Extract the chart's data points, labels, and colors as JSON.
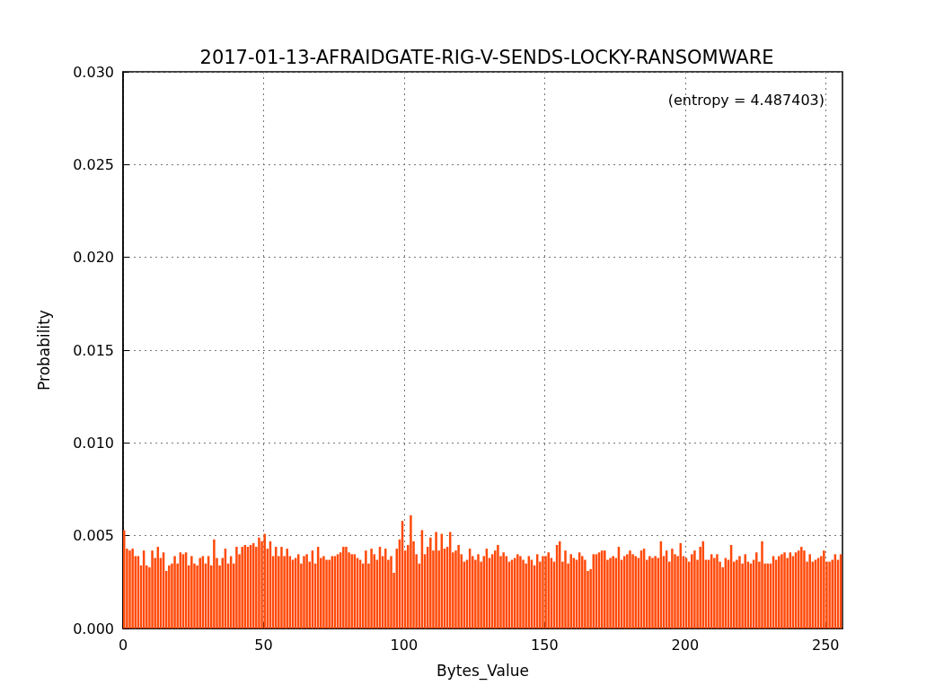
{
  "chart_data": {
    "type": "histogram",
    "title": "2017-01-13-AFRAIDGATE-RIG-V-SENDS-LOCKY-RANSOMWARE",
    "xlabel": "Bytes_Value",
    "ylabel": "Probability",
    "color": "#ff4a0a",
    "annotations": [
      "(entropy = 4.487403)"
    ],
    "bins": [
      0,
      1,
      2,
      3,
      4,
      5,
      6,
      7,
      8,
      9,
      10,
      11,
      12,
      13,
      14,
      15,
      16,
      17,
      18,
      19,
      20,
      21,
      22,
      23,
      24,
      25,
      26,
      27,
      28,
      29,
      30,
      31,
      32,
      33,
      34,
      35,
      36,
      37,
      38,
      39,
      40,
      41,
      42,
      43,
      44,
      45,
      46,
      47,
      48,
      49,
      50,
      51,
      52,
      53,
      54,
      55,
      56,
      57,
      58,
      59,
      60,
      61,
      62,
      63,
      64,
      65,
      66,
      67,
      68,
      69,
      70,
      71,
      72,
      73,
      74,
      75,
      76,
      77,
      78,
      79,
      80,
      81,
      82,
      83,
      84,
      85,
      86,
      87,
      88,
      89,
      90,
      91,
      92,
      93,
      94,
      95,
      96,
      97,
      98,
      99,
      100,
      101,
      102,
      103,
      104,
      105,
      106,
      107,
      108,
      109,
      110,
      111,
      112,
      113,
      114,
      115,
      116,
      117,
      118,
      119,
      120,
      121,
      122,
      123,
      124,
      125,
      126,
      127,
      128,
      129,
      130,
      131,
      132,
      133,
      134,
      135,
      136,
      137,
      138,
      139,
      140,
      141,
      142,
      143,
      144,
      145,
      146,
      147,
      148,
      149,
      150,
      151,
      152,
      153,
      154,
      155,
      156,
      157,
      158,
      159,
      160,
      161,
      162,
      163,
      164,
      165,
      166,
      167,
      168,
      169,
      170,
      171,
      172,
      173,
      174,
      175,
      176,
      177,
      178,
      179,
      180,
      181,
      182,
      183,
      184,
      185,
      186,
      187,
      188,
      189,
      190,
      191,
      192,
      193,
      194,
      195,
      196,
      197,
      198,
      199,
      200,
      201,
      202,
      203,
      204,
      205,
      206,
      207,
      208,
      209,
      210,
      211,
      212,
      213,
      214,
      215,
      216,
      217,
      218,
      219,
      220,
      221,
      222,
      223,
      224,
      225,
      226,
      227,
      228,
      229,
      230,
      231,
      232,
      233,
      234,
      235,
      236,
      237,
      238,
      239,
      240,
      241,
      242,
      243,
      244,
      245,
      246,
      247,
      248,
      249,
      250,
      251,
      252,
      253,
      254,
      255,
      256
    ],
    "values": [
      0.0053,
      0.0043,
      0.0042,
      0.0043,
      0.0039,
      0.0039,
      0.0034,
      0.0042,
      0.0034,
      0.0033,
      0.0042,
      0.0038,
      0.0044,
      0.0038,
      0.0041,
      0.0031,
      0.0034,
      0.0035,
      0.0039,
      0.0035,
      0.0041,
      0.004,
      0.0041,
      0.0034,
      0.0039,
      0.0035,
      0.0034,
      0.0038,
      0.0039,
      0.0035,
      0.0039,
      0.0034,
      0.0048,
      0.0038,
      0.0034,
      0.0038,
      0.0043,
      0.0035,
      0.0039,
      0.0035,
      0.0044,
      0.004,
      0.0044,
      0.0045,
      0.0044,
      0.0045,
      0.0046,
      0.0044,
      0.0049,
      0.0047,
      0.0051,
      0.0043,
      0.0047,
      0.0039,
      0.0044,
      0.0039,
      0.0044,
      0.0039,
      0.0043,
      0.0039,
      0.0037,
      0.0038,
      0.004,
      0.0035,
      0.0039,
      0.004,
      0.0036,
      0.0042,
      0.0035,
      0.0044,
      0.0038,
      0.0039,
      0.0037,
      0.0037,
      0.0039,
      0.0039,
      0.004,
      0.0041,
      0.0044,
      0.0044,
      0.0041,
      0.004,
      0.004,
      0.0038,
      0.0037,
      0.0035,
      0.0042,
      0.0035,
      0.0043,
      0.004,
      0.0037,
      0.0044,
      0.0039,
      0.0043,
      0.0037,
      0.0039,
      0.003,
      0.0043,
      0.0048,
      0.0058,
      0.0042,
      0.0045,
      0.0061,
      0.0047,
      0.004,
      0.0035,
      0.0053,
      0.004,
      0.0044,
      0.0049,
      0.0042,
      0.0052,
      0.0042,
      0.0051,
      0.0043,
      0.0044,
      0.0052,
      0.0041,
      0.0042,
      0.0045,
      0.004,
      0.0036,
      0.0037,
      0.0043,
      0.0039,
      0.0037,
      0.004,
      0.0036,
      0.0039,
      0.0043,
      0.0038,
      0.004,
      0.0042,
      0.0045,
      0.0039,
      0.0041,
      0.0039,
      0.0036,
      0.0037,
      0.0038,
      0.004,
      0.0039,
      0.0037,
      0.0035,
      0.0039,
      0.0037,
      0.0034,
      0.004,
      0.0036,
      0.0039,
      0.0039,
      0.0041,
      0.0038,
      0.0036,
      0.0045,
      0.0047,
      0.0036,
      0.0042,
      0.0035,
      0.004,
      0.0038,
      0.0037,
      0.0041,
      0.0039,
      0.0037,
      0.0031,
      0.0032,
      0.004,
      0.004,
      0.0041,
      0.0042,
      0.0042,
      0.0037,
      0.0038,
      0.0039,
      0.0038,
      0.0044,
      0.0037,
      0.0039,
      0.004,
      0.0042,
      0.004,
      0.0039,
      0.0038,
      0.0042,
      0.0043,
      0.0037,
      0.0039,
      0.0038,
      0.0039,
      0.0038,
      0.0047,
      0.0039,
      0.0042,
      0.0036,
      0.0043,
      0.004,
      0.0039,
      0.0046,
      0.0039,
      0.0038,
      0.0036,
      0.004,
      0.0042,
      0.0037,
      0.0044,
      0.0047,
      0.0037,
      0.0037,
      0.004,
      0.0038,
      0.004,
      0.0036,
      0.0033,
      0.0038,
      0.0037,
      0.0045,
      0.0036,
      0.0037,
      0.0039,
      0.0035,
      0.004,
      0.0036,
      0.0035,
      0.0037,
      0.0041,
      0.0036,
      0.0047,
      0.0035,
      0.0035,
      0.0035,
      0.0039,
      0.0037,
      0.0039,
      0.004,
      0.0041,
      0.0038,
      0.0041,
      0.0039,
      0.0041,
      0.0042,
      0.0044,
      0.0042,
      0.0036,
      0.004,
      0.0036,
      0.0037,
      0.0038,
      0.0039,
      0.0042,
      0.0036,
      0.0036,
      0.0037,
      0.004,
      0.0037,
      0.004
    ],
    "xlim": [
      0,
      256
    ],
    "xticks": [
      0,
      50,
      100,
      150,
      200,
      250
    ],
    "ylim": [
      0,
      0.03
    ],
    "yticks": [
      {
        "value": 0,
        "label": "0.000"
      },
      {
        "value": 0.005,
        "label": "0.005"
      },
      {
        "value": 0.01,
        "label": "0.010"
      },
      {
        "value": 0.015,
        "label": "0.015"
      },
      {
        "value": 0.02,
        "label": "0.020"
      },
      {
        "value": 0.025,
        "label": "0.025"
      },
      {
        "value": 0.03,
        "label": "0.030"
      }
    ],
    "grid": true
  }
}
